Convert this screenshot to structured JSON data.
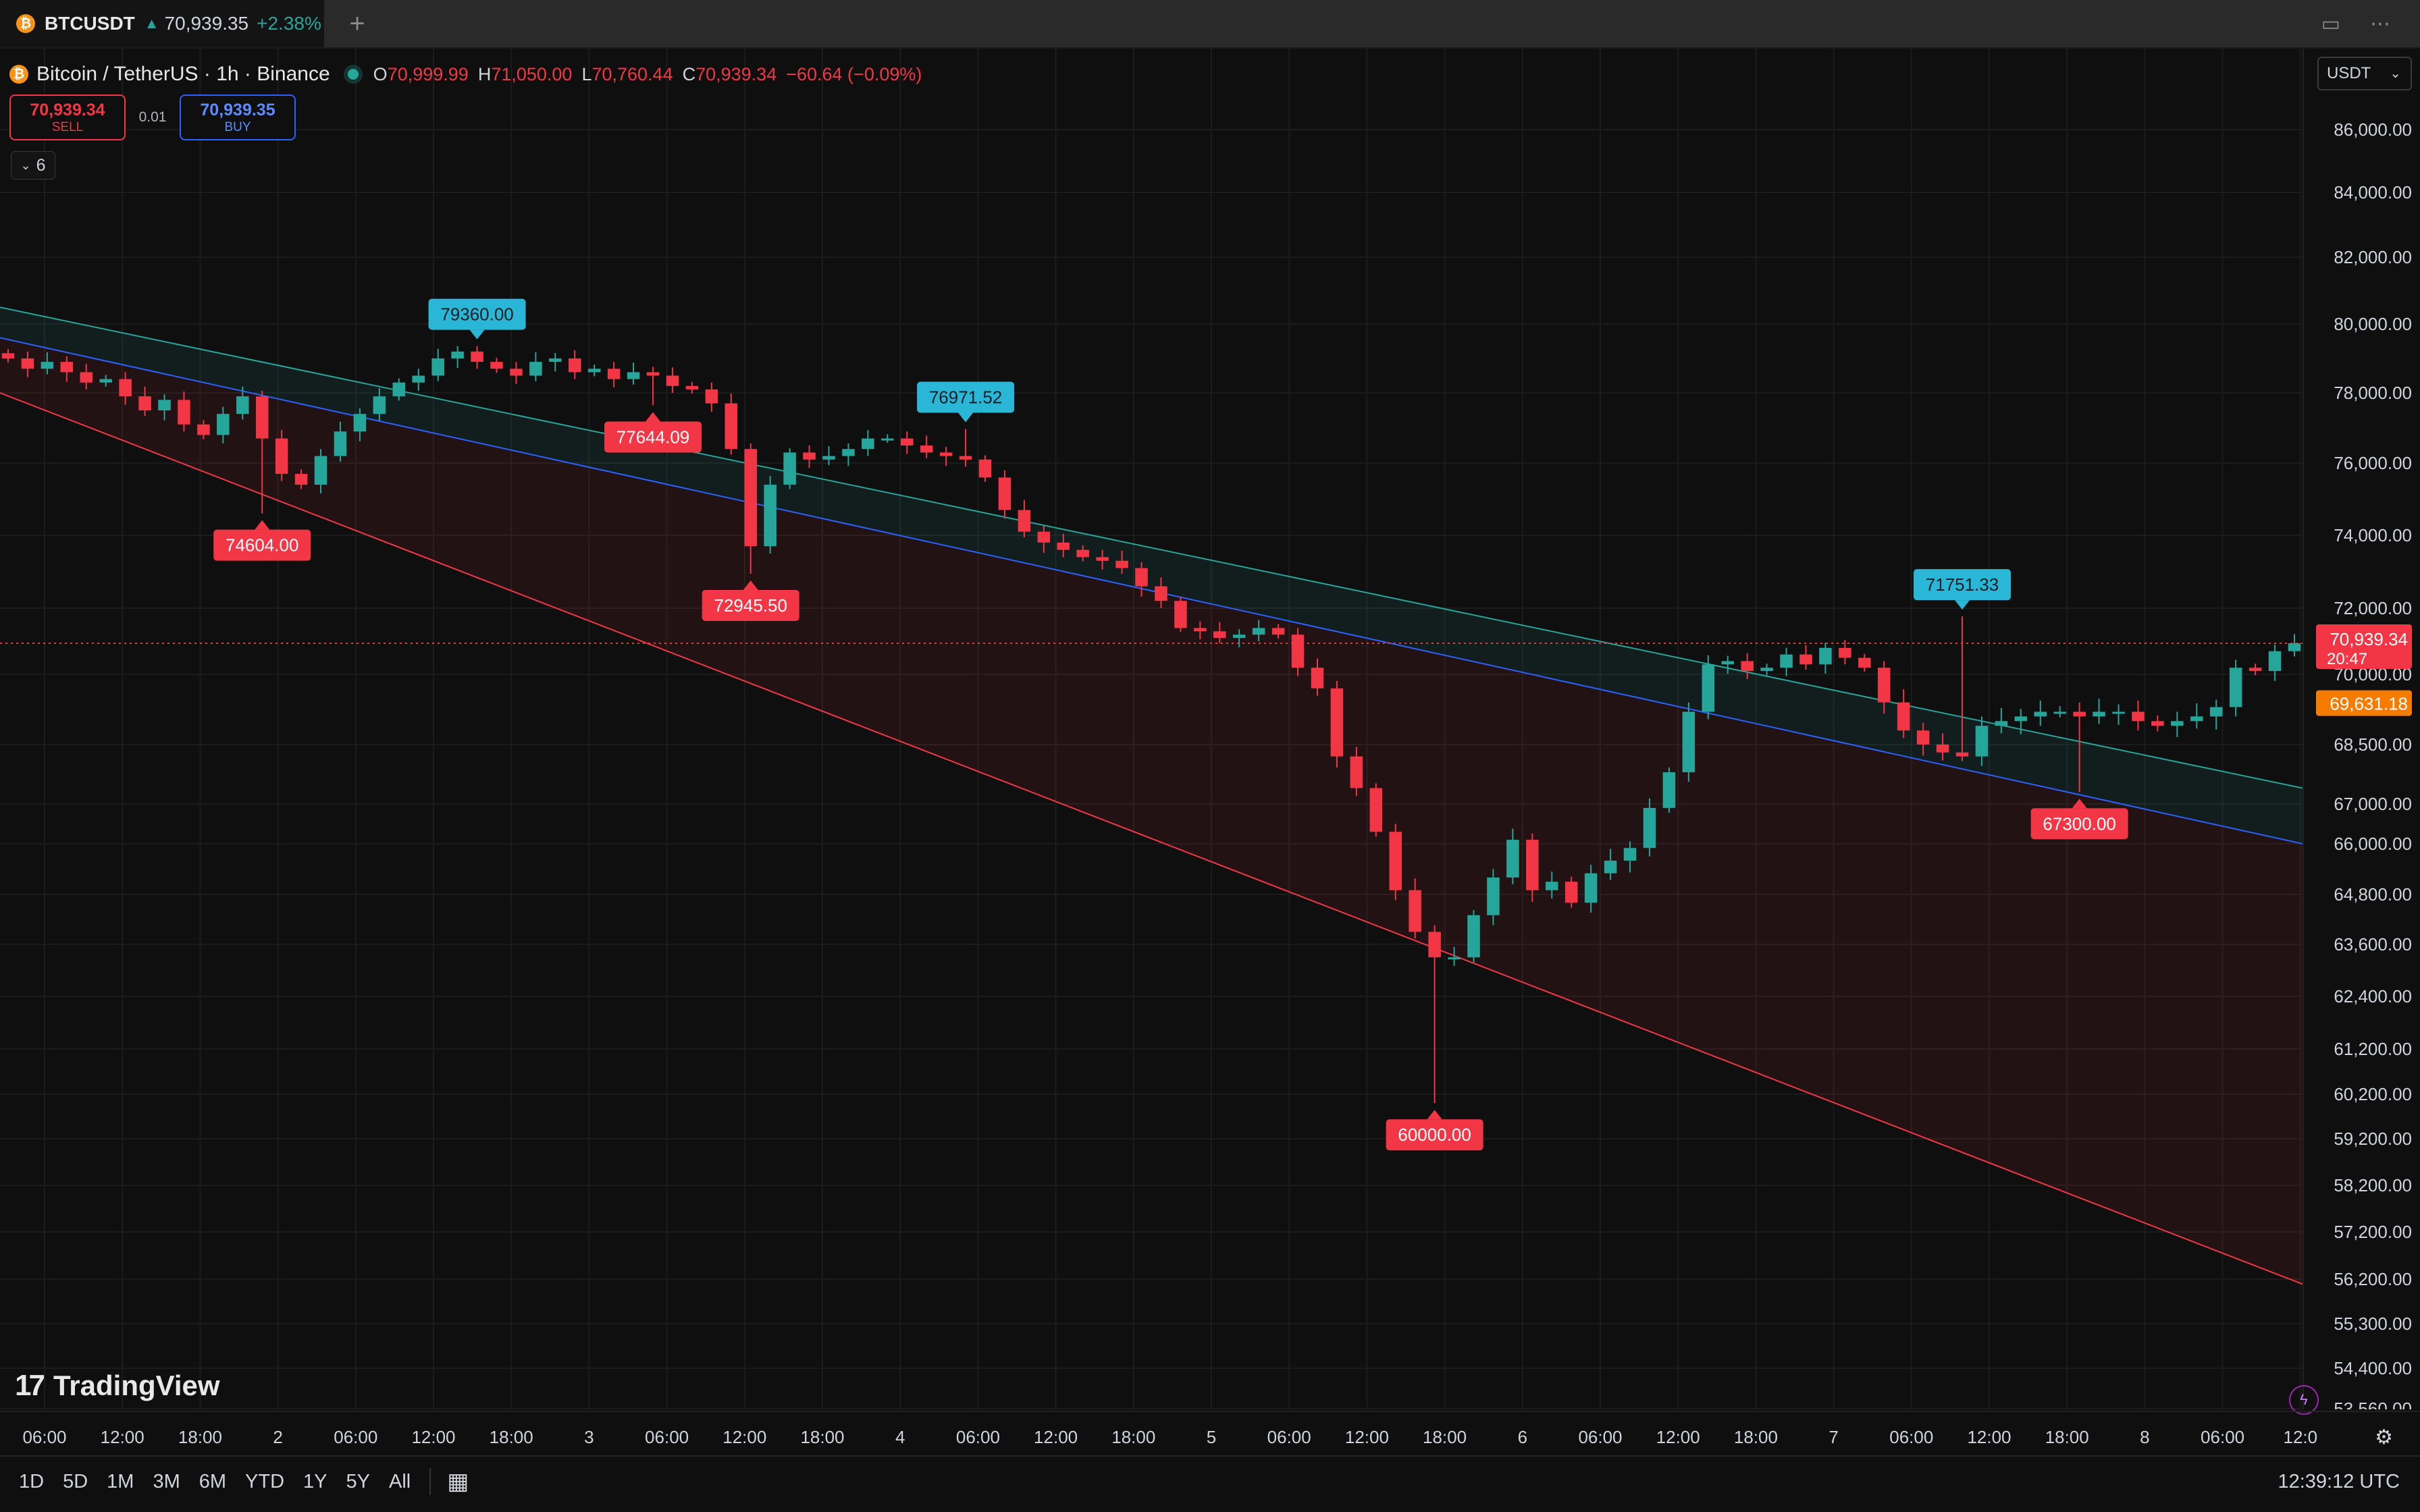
{
  "tab": {
    "symbol": "BTCUSDT",
    "arrow": "▲",
    "price": "70,939.35",
    "change": "+2.38%",
    "new_tab": "+",
    "icon_layout": "layout-icon",
    "icon_more": "more-icon"
  },
  "legend": {
    "title": "Bitcoin / TetherUS · 1h · Binance",
    "o_label": "O",
    "o_value": "70,999.99",
    "h_label": "H",
    "h_value": "71,050.00",
    "l_label": "L",
    "l_value": "70,760.44",
    "c_label": "C",
    "c_value": "70,939.34",
    "change": "−60.64 (−0.09%)"
  },
  "trade": {
    "sell_price": "70,939.34",
    "sell_label": "SELL",
    "spread": "0.01",
    "buy_price": "70,939.35",
    "buy_label": "BUY"
  },
  "indicators_toggle": {
    "count": "6"
  },
  "currency": {
    "selected": "USDT"
  },
  "colors": {
    "up": "#26a69a",
    "down": "#f23645",
    "mid_line": "#2962ff",
    "upper_line": "#26a69a",
    "lower_line": "#f23645",
    "high_label": "#2ab6d6",
    "low_label": "#f23645",
    "countdown": "#f57c00"
  },
  "chart_data": {
    "type": "candlestick",
    "y_ticks": [
      "86,000.00",
      "84,000.00",
      "82,000.00",
      "80,000.00",
      "78,000.00",
      "76,000.00",
      "74,000.00",
      "72,000.00",
      "70,000.00",
      "68,500.00",
      "67,000.00",
      "66,000.00",
      "64,800.00",
      "63,600.00",
      "62,400.00",
      "61,200.00",
      "60,200.00",
      "59,200.00",
      "58,200.00",
      "57,200.00",
      "56,200.00",
      "55,300.00",
      "54,400.00",
      "53,560.00"
    ],
    "x_ticks": [
      "06:00",
      "12:00",
      "18:00",
      "2",
      "06:00",
      "12:00",
      "18:00",
      "3",
      "06:00",
      "12:00",
      "18:00",
      "4",
      "06:00",
      "12:00",
      "18:00",
      "5",
      "06:00",
      "12:00",
      "18:00",
      "6",
      "06:00",
      "12:00",
      "18:00",
      "7",
      "06:00",
      "12:00",
      "18:00",
      "8",
      "06:00",
      "12:0"
    ],
    "path": [
      79000,
      78700,
      78900,
      78600,
      78300,
      78400,
      77900,
      77500,
      77800,
      77100,
      76800,
      77400,
      77900,
      76700,
      75700,
      75400,
      76200,
      76900,
      77400,
      77900,
      78300,
      78500,
      79000,
      79200,
      78900,
      78700,
      78500,
      78900,
      79000,
      78600,
      78700,
      78400,
      78600,
      78500,
      78200,
      78100,
      77700,
      76400,
      73700,
      75400,
      76300,
      76100,
      76200,
      76400,
      76700,
      76700,
      76500,
      76300,
      76200,
      76100,
      75600,
      74700,
      74100,
      73800,
      73600,
      73400,
      73300,
      73100,
      72600,
      72200,
      71400,
      71300,
      71100,
      71200,
      71400,
      71200,
      70200,
      69700,
      68200,
      67400,
      66300,
      64900,
      63900,
      63300,
      63300,
      64300,
      65200,
      66100,
      64900,
      65100,
      64600,
      65300,
      65600,
      65900,
      66900,
      67800,
      69200,
      70300,
      70400,
      70100,
      70200,
      70600,
      70300,
      70800,
      70500,
      70200,
      69400,
      68800,
      68500,
      68300,
      68200,
      68900,
      69000,
      69100,
      69200,
      69200,
      69100,
      69200,
      69200,
      69000,
      68900,
      69000,
      69100,
      69300,
      70200,
      70100,
      70700,
      70939
    ],
    "point_labels": [
      {
        "text": "79360.00",
        "kind": "high",
        "index": 24
      },
      {
        "text": "77644.09",
        "kind": "low",
        "index": 33
      },
      {
        "text": "74604.00",
        "kind": "low",
        "index": 13
      },
      {
        "text": "76971.52",
        "kind": "high",
        "index": 49
      },
      {
        "text": "72945.50",
        "kind": "low",
        "index": 38
      },
      {
        "text": "60000.00",
        "kind": "low",
        "index": 73
      },
      {
        "text": "71751.33",
        "kind": "high",
        "index": 100
      },
      {
        "text": "67300.00",
        "kind": "low",
        "index": 106
      }
    ],
    "current_price": "70,939.34",
    "countdown": "20:47",
    "second_price": "69,631.18",
    "channel": {
      "upper": [
        80500,
        67400
      ],
      "middle": [
        79600,
        66000
      ],
      "lower": [
        78000,
        56100
      ]
    }
  },
  "bottom": {
    "ranges": [
      "1D",
      "5D",
      "1M",
      "3M",
      "6M",
      "YTD",
      "1Y",
      "5Y",
      "All"
    ],
    "calendar_icon": "calendar-icon",
    "clock": "12:39:12 UTC"
  },
  "brand": {
    "mark": "17",
    "name": "TradingView"
  }
}
